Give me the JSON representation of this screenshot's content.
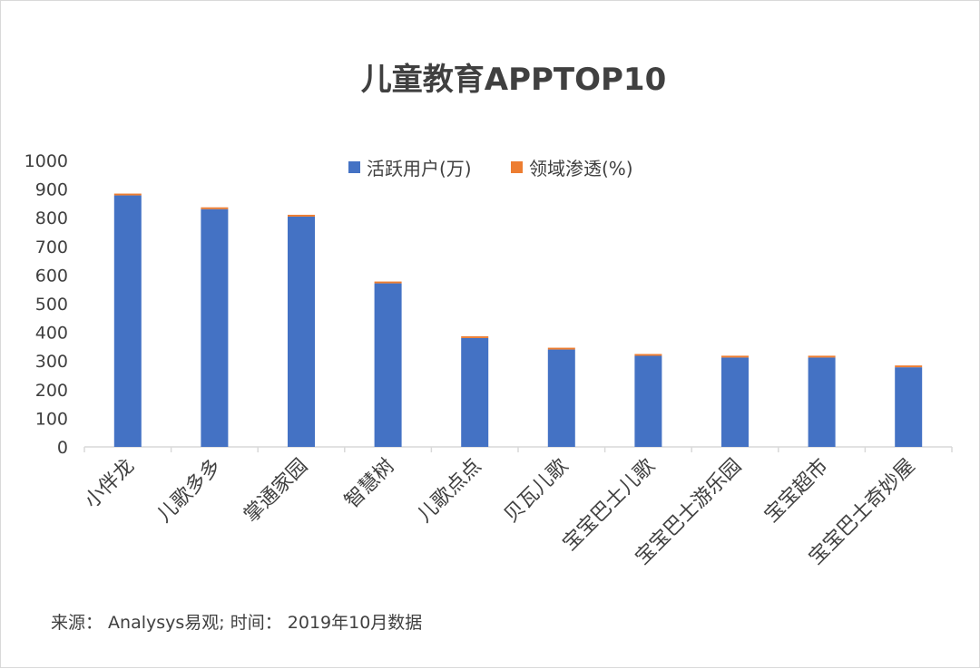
{
  "chart_data": {
    "type": "bar",
    "stacked": true,
    "title": "儿童教育APPTOP10",
    "categories": [
      "小伴龙",
      "儿歌多多",
      "掌通家园",
      "智慧树",
      "儿歌点点",
      "贝瓦儿歌",
      "宝宝巴士儿歌",
      "宝宝巴士游乐园",
      "宝宝超市",
      "宝宝巴士奇妙屋"
    ],
    "series": [
      {
        "name": "活跃用户(万)",
        "color": "#4472C4",
        "values": [
          878,
          830,
          804,
          571,
          380,
          340,
          318,
          312,
          312,
          278
        ]
      },
      {
        "name": "领域渗透(%)",
        "color": "#ED7D31",
        "values": [
          5.2,
          4.9,
          4.7,
          3.4,
          2.2,
          2.0,
          1.9,
          1.8,
          1.8,
          1.6
        ]
      }
    ],
    "ylim": [
      0,
      1000
    ],
    "yticks": [
      0,
      100,
      200,
      300,
      400,
      500,
      600,
      700,
      800,
      900,
      1000
    ],
    "grid": false,
    "legend_position": "top"
  },
  "source_note": "来源： Analysys易观; 时间： 2019年10月数据"
}
